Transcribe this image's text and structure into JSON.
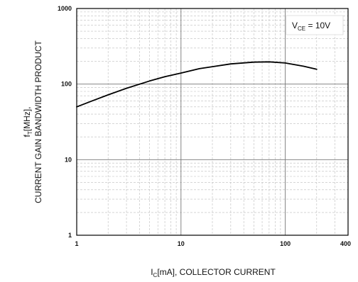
{
  "chart_data": {
    "type": "line",
    "title": "",
    "xlabel": {
      "main": "I",
      "sub": "C",
      "rest": "[mA], COLLECTOR CURRENT"
    },
    "ylabel": {
      "line1": {
        "main": "f",
        "sub": "T",
        "rest": "[MHz],"
      },
      "line2": "CURRENT GAIN BANDWIDTH PRODUCT"
    },
    "xscale": "log",
    "yscale": "log",
    "xlim": [
      1,
      400
    ],
    "ylim": [
      1,
      1000
    ],
    "grid": true,
    "xticks": [
      {
        "value": 1,
        "label": "1"
      },
      {
        "value": 10,
        "label": "10"
      },
      {
        "value": 100,
        "label": "100"
      },
      {
        "value": 400,
        "label": "400"
      }
    ],
    "yticks": [
      {
        "value": 1,
        "label": "1"
      },
      {
        "value": 10,
        "label": "10"
      },
      {
        "value": 100,
        "label": "100"
      },
      {
        "value": 1000,
        "label": "1000"
      }
    ],
    "annotation": {
      "main": "V",
      "sub": "CE",
      "rest": " = 10V",
      "placement": "top-right"
    },
    "series": [
      {
        "x": [
          1,
          1.5,
          2,
          3,
          5,
          7,
          10,
          15,
          20,
          30,
          50,
          70,
          100,
          150,
          200
        ],
        "y": [
          50,
          62,
          72,
          88,
          110,
          125,
          140,
          160,
          170,
          185,
          195,
          197,
          190,
          172,
          157
        ]
      }
    ]
  }
}
